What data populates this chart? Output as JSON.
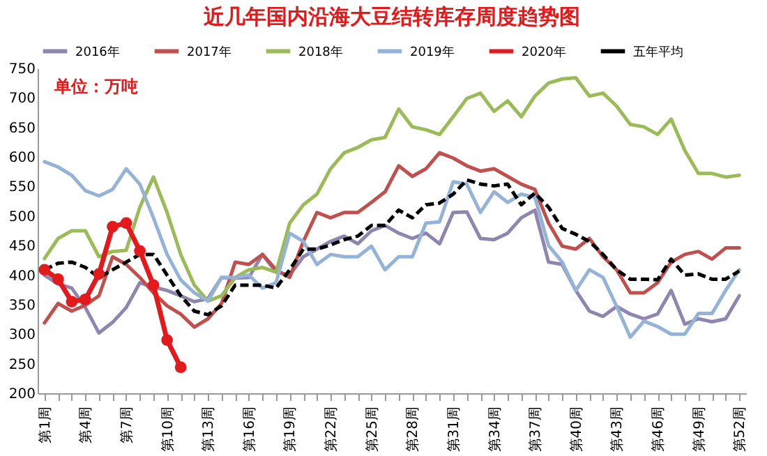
{
  "chart_data": {
    "type": "line",
    "title": "近几年国内沿海大豆结转库存周度趋势图",
    "annotations": [
      "单位：万吨"
    ],
    "categories": [
      "第1周",
      null,
      null,
      "第4周",
      null,
      null,
      "第7周",
      null,
      null,
      "第10周",
      null,
      null,
      "第13周",
      null,
      null,
      "第16周",
      null,
      null,
      "第19周",
      null,
      null,
      "第22周",
      null,
      null,
      "第25周",
      null,
      null,
      "第28周",
      null,
      null,
      "第31周",
      null,
      null,
      "第34周",
      null,
      null,
      "第37周",
      null,
      null,
      "第40周",
      null,
      null,
      "第43周",
      null,
      null,
      "第46周",
      null,
      null,
      "第49周",
      null,
      null,
      "第52周"
    ],
    "ylim": [
      200,
      750
    ],
    "yticks": [
      200,
      250,
      300,
      350,
      400,
      450,
      500,
      550,
      600,
      650,
      700,
      750
    ],
    "grid": false,
    "legend": "top",
    "series": [
      {
        "name": "2016年",
        "color": "#8e86ae",
        "values": [
          400,
          385,
          378,
          345,
          302,
          320,
          345,
          387,
          380,
          374,
          365,
          355,
          360,
          396,
          395,
          396,
          435,
          405,
          400,
          431,
          444,
          457,
          466,
          453,
          475,
          484,
          471,
          462,
          471,
          453,
          506,
          507,
          462,
          460,
          471,
          497,
          510,
          422,
          418,
          374,
          339,
          330,
          347,
          334,
          326,
          334,
          374,
          317,
          326,
          321,
          326,
          365
        ]
      },
      {
        "name": "2017年",
        "color": "#c0504d",
        "values": [
          319,
          352,
          339,
          349,
          365,
          431,
          418,
          396,
          370,
          348,
          334,
          312,
          326,
          352,
          422,
          418,
          435,
          409,
          396,
          457,
          506,
          497,
          506,
          506,
          523,
          541,
          585,
          567,
          580,
          607,
          598,
          585,
          576,
          580,
          567,
          554,
          545,
          488,
          449,
          444,
          462,
          431,
          409,
          370,
          370,
          387,
          422,
          435,
          440,
          427,
          446,
          446
        ]
      },
      {
        "name": "2018年",
        "color": "#9bbb59",
        "values": [
          428,
          462,
          475,
          475,
          431,
          440,
          442,
          515,
          566,
          506,
          435,
          383,
          356,
          365,
          396,
          409,
          413,
          405,
          488,
          519,
          537,
          580,
          607,
          616,
          629,
          633,
          681,
          651,
          646,
          638,
          668,
          699,
          708,
          677,
          695,
          668,
          703,
          725,
          732,
          734,
          703,
          708,
          686,
          655,
          651,
          638,
          664,
          611,
          572,
          572,
          566,
          569
        ]
      },
      {
        "name": "2019年",
        "color": "#95b3d7",
        "values": [
          592,
          583,
          569,
          543,
          534,
          545,
          580,
          554,
          497,
          435,
          392,
          370,
          356,
          396,
          396,
          400,
          378,
          387,
          471,
          457,
          418,
          435,
          431,
          431,
          449,
          409,
          431,
          431,
          488,
          490,
          558,
          554,
          506,
          541,
          523,
          537,
          532,
          450,
          422,
          374,
          409,
          396,
          347,
          295,
          322,
          313,
          300,
          300,
          335,
          335,
          374,
          409
        ]
      },
      {
        "name": "2020年",
        "color": "#e31a1c",
        "marker": "circle",
        "values": [
          409,
          393,
          355,
          359,
          402,
          482,
          488,
          441,
          383,
          290,
          244,
          null,
          null,
          null,
          null,
          null,
          null,
          null,
          null,
          null,
          null,
          null,
          null,
          null,
          null,
          null,
          null,
          null,
          null,
          null,
          null,
          null,
          null,
          null,
          null,
          null,
          null,
          null,
          null,
          null,
          null,
          null,
          null,
          null,
          null,
          null,
          null,
          null,
          null,
          null,
          null,
          null
        ]
      },
      {
        "name": "五年平均",
        "color": "#000000",
        "line_style": "dashed",
        "values": [
          409,
          420,
          422,
          413,
          396,
          409,
          422,
          435,
          435,
          400,
          365,
          339,
          333,
          348,
          383,
          383,
          383,
          378,
          409,
          444,
          444,
          451,
          460,
          466,
          484,
          484,
          510,
          497,
          519,
          522,
          537,
          561,
          554,
          551,
          554,
          519,
          539,
          515,
          479,
          469,
          457,
          435,
          409,
          393,
          393,
          392,
          427,
          400,
          402,
          393,
          393,
          407
        ]
      }
    ]
  }
}
